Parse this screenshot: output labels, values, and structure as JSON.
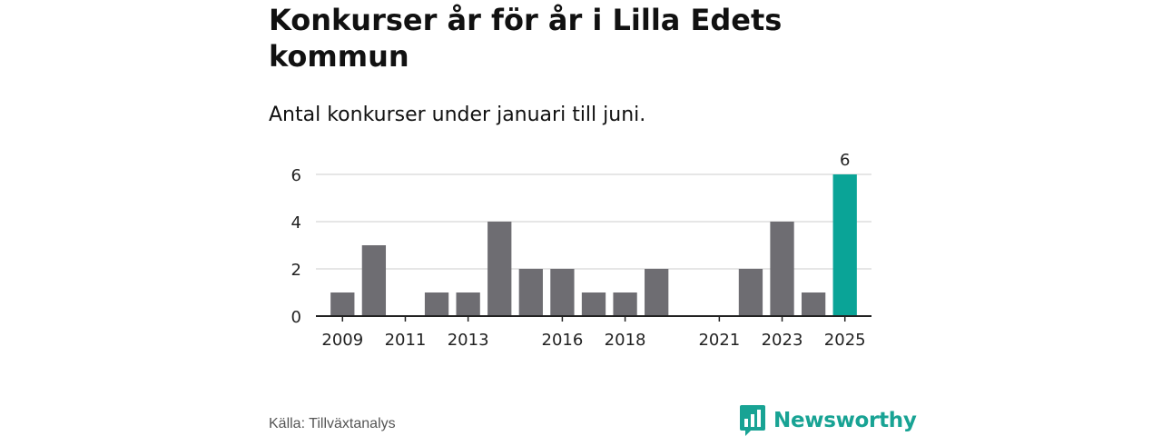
{
  "header": {
    "title": "Konkurser år för år i Lilla Edets kommun",
    "subtitle": "Antal konkurser under januari till juni."
  },
  "footer": {
    "source": "Källa: Tillväxtanalys",
    "brand": "Newsworthy"
  },
  "colors": {
    "bar": "#6e6d72",
    "highlight": "#0aa497",
    "grid": "#dddddd",
    "axis": "#222222",
    "text": "#222222"
  },
  "icons": {
    "brand_logo": "bar-chart-speech-bubble-icon"
  },
  "chart_data": {
    "type": "bar",
    "title": "Konkurser år för år i Lilla Edets kommun",
    "subtitle": "Antal konkurser under januari till juni.",
    "xlabel": "",
    "ylabel": "",
    "categories": [
      "2009",
      "2010",
      "2011",
      "2012",
      "2013",
      "2014",
      "2015",
      "2016",
      "2017",
      "2018",
      "2019",
      "2020",
      "2021",
      "2022",
      "2023",
      "2024",
      "2025"
    ],
    "values": [
      1,
      3,
      0,
      1,
      1,
      4,
      2,
      2,
      1,
      1,
      2,
      0,
      0,
      2,
      4,
      1,
      6
    ],
    "highlight_category": "2025",
    "data_labels": [
      {
        "category": "2025",
        "text": "6"
      }
    ],
    "x_tick_labels": [
      "2009",
      "2011",
      "2013",
      "2016",
      "2018",
      "2021",
      "2023",
      "2025"
    ],
    "ylim": [
      0,
      6
    ],
    "y_ticks": [
      0,
      2,
      4,
      6
    ],
    "grid": true,
    "legend": "none"
  }
}
